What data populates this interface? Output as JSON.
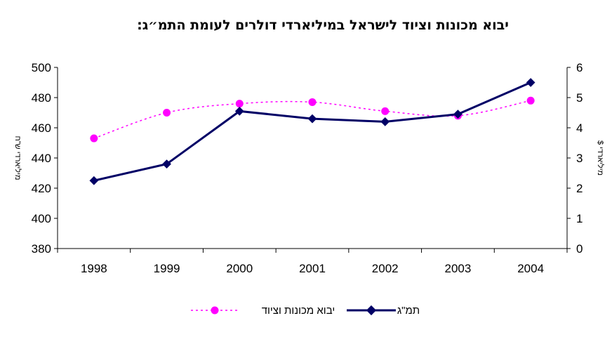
{
  "chart_data": {
    "type": "line",
    "title": "יבוא מכונות וציוד לישראל במיליארדי דולרים לעומת התמ״ג:",
    "categories": [
      "1998",
      "1999",
      "2000",
      "2001",
      "2002",
      "2003",
      "2004"
    ],
    "left_axis": {
      "label": "מיליארדי ש\"ח",
      "ylim": [
        380,
        500
      ],
      "ticks": [
        "500",
        "480",
        "460",
        "440",
        "420",
        "400",
        "380"
      ]
    },
    "right_axis": {
      "label": "מיליארדי $",
      "ylim": [
        0,
        6
      ],
      "ticks": [
        "6",
        "5",
        "4",
        "3",
        "2",
        "1",
        "0"
      ]
    },
    "series": [
      {
        "name": "יבוא מכונות וציוד",
        "axis": "right",
        "values": [
          3.65,
          4.5,
          4.8,
          4.85,
          4.55,
          4.4,
          4.9
        ],
        "color": "#FF00FF",
        "style": "dotted",
        "marker": "circle"
      },
      {
        "name": "תמ\"ג",
        "axis": "left",
        "values": [
          425,
          436,
          471,
          466,
          464,
          469,
          490
        ],
        "color": "#000066",
        "style": "solid",
        "marker": "diamond"
      }
    ],
    "grid": false,
    "legend_position": "bottom"
  }
}
